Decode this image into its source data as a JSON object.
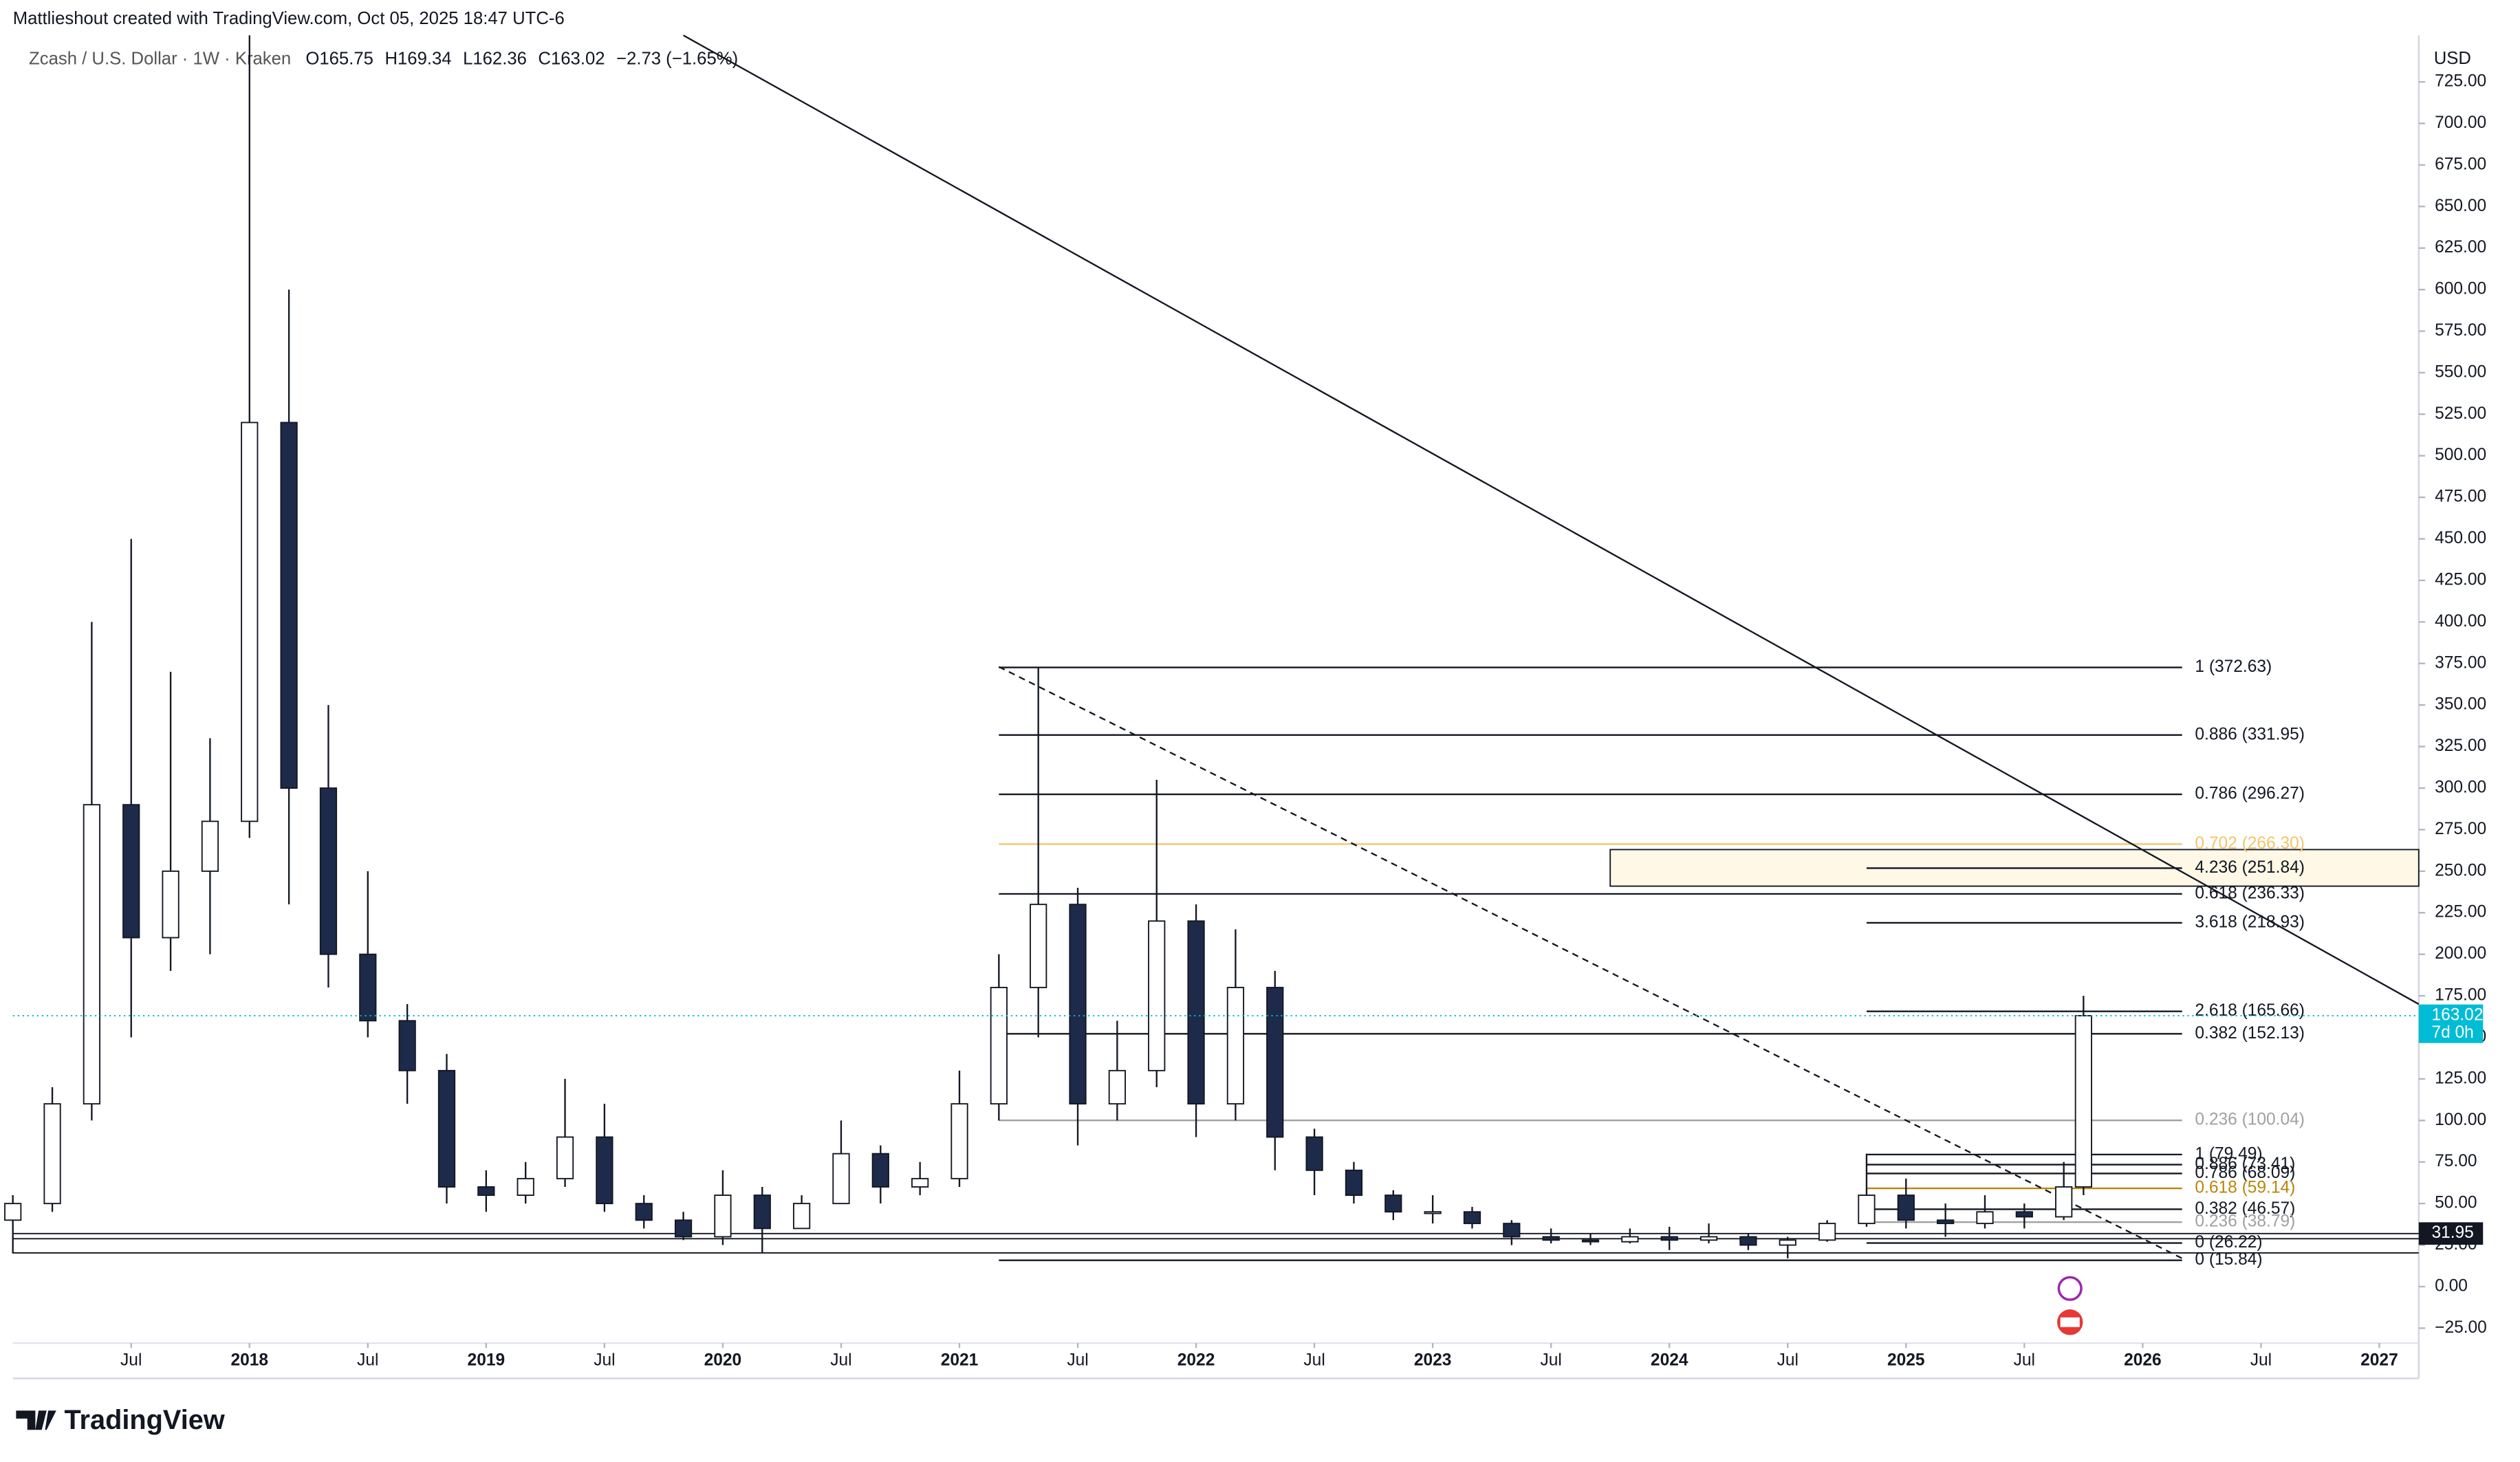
{
  "header": {
    "credit": "Mattlieshout created with TradingView.com, Oct 05, 2025 18:47 UTC-6",
    "symbol": "Zcash / U.S. Dollar · 1W · Kraken",
    "open": "O165.75",
    "high": "H169.34",
    "low": "L162.36",
    "close": "C163.02",
    "change": "−2.73 (−1.65%)",
    "currency": "USD",
    "brand": "TradingView"
  },
  "chart_data": {
    "type": "candlestick",
    "x": [
      "2017-01",
      "2017-03",
      "2017-05",
      "2017-07",
      "2017-09",
      "2017-11",
      "2018-01",
      "2018-03",
      "2018-05",
      "2018-07",
      "2018-09",
      "2018-11",
      "2019-01",
      "2019-03",
      "2019-05",
      "2019-07",
      "2019-09",
      "2019-11",
      "2020-01",
      "2020-03",
      "2020-05",
      "2020-07",
      "2020-09",
      "2020-11",
      "2021-01",
      "2021-03",
      "2021-05",
      "2021-07",
      "2021-09",
      "2021-11",
      "2022-01",
      "2022-03",
      "2022-05",
      "2022-07",
      "2022-09",
      "2022-11",
      "2023-01",
      "2023-03",
      "2023-05",
      "2023-07",
      "2023-09",
      "2023-11",
      "2024-01",
      "2024-03",
      "2024-05",
      "2024-07",
      "2024-09",
      "2024-11",
      "2025-01",
      "2025-03",
      "2025-05",
      "2025-07",
      "2025-09",
      "2025-10"
    ],
    "open": [
      40,
      50,
      110,
      290,
      210,
      250,
      280,
      520,
      300,
      200,
      160,
      130,
      60,
      55,
      65,
      90,
      50,
      40,
      30,
      55,
      35,
      50,
      80,
      60,
      65,
      110,
      180,
      230,
      110,
      130,
      220,
      110,
      180,
      90,
      70,
      55,
      45,
      45,
      38,
      30,
      28,
      27,
      30,
      28,
      30,
      25,
      28,
      38,
      55,
      40,
      38,
      45,
      42,
      60
    ],
    "high": [
      55,
      120,
      400,
      450,
      370,
      330,
      760,
      600,
      350,
      250,
      170,
      140,
      70,
      75,
      125,
      110,
      55,
      45,
      70,
      60,
      55,
      100,
      85,
      75,
      130,
      200,
      373,
      240,
      160,
      305,
      230,
      215,
      190,
      95,
      75,
      58,
      55,
      48,
      40,
      35,
      32,
      35,
      36,
      38,
      32,
      30,
      40,
      80,
      65,
      50,
      55,
      50,
      75,
      175
    ],
    "low": [
      20,
      45,
      100,
      150,
      190,
      200,
      270,
      230,
      180,
      150,
      110,
      50,
      45,
      50,
      60,
      45,
      35,
      28,
      25,
      20,
      35,
      50,
      50,
      55,
      60,
      100,
      150,
      85,
      100,
      120,
      90,
      100,
      70,
      55,
      50,
      40,
      38,
      35,
      25,
      26,
      25,
      26,
      22,
      26,
      22,
      17,
      27,
      36,
      35,
      30,
      35,
      35,
      40,
      55
    ],
    "close": [
      50,
      110,
      290,
      210,
      250,
      280,
      520,
      300,
      200,
      160,
      130,
      60,
      55,
      65,
      90,
      50,
      40,
      30,
      55,
      35,
      50,
      80,
      60,
      65,
      110,
      180,
      230,
      110,
      130,
      220,
      110,
      180,
      90,
      70,
      55,
      45,
      45,
      38,
      30,
      28,
      27,
      30,
      28,
      30,
      25,
      28,
      38,
      55,
      40,
      38,
      45,
      42,
      60,
      163.02
    ],
    "up_color": "#ffffff",
    "down_color": "#1e2a4a",
    "wick_color": "#131722",
    "xlim": [
      "2017-01",
      "2027-03"
    ],
    "xticks": [
      {
        "value": "2017-07",
        "label": "Jul"
      },
      {
        "value": "2018-01",
        "label": "2018"
      },
      {
        "value": "2018-07",
        "label": "Jul"
      },
      {
        "value": "2019-01",
        "label": "2019"
      },
      {
        "value": "2019-07",
        "label": "Jul"
      },
      {
        "value": "2020-01",
        "label": "2020"
      },
      {
        "value": "2020-07",
        "label": "Jul"
      },
      {
        "value": "2021-01",
        "label": "2021"
      },
      {
        "value": "2021-07",
        "label": "Jul"
      },
      {
        "value": "2022-01",
        "label": "2022"
      },
      {
        "value": "2022-07",
        "label": "Jul"
      },
      {
        "value": "2023-01",
        "label": "2023"
      },
      {
        "value": "2023-07",
        "label": "Jul"
      },
      {
        "value": "2024-01",
        "label": "2024"
      },
      {
        "value": "2024-07",
        "label": "Jul"
      },
      {
        "value": "2025-01",
        "label": "2025"
      },
      {
        "value": "2025-07",
        "label": "Jul"
      },
      {
        "value": "2026-01",
        "label": "2026"
      },
      {
        "value": "2026-07",
        "label": "Jul"
      },
      {
        "value": "2027-01",
        "label": "2027"
      }
    ],
    "ylim": [
      -34,
      753
    ],
    "yticks": [
      {
        "value": -25,
        "label": "−25.00"
      },
      {
        "value": 0,
        "label": "0.00"
      },
      {
        "value": 25,
        "label": "25.00"
      },
      {
        "value": 50,
        "label": "50.00"
      },
      {
        "value": 75,
        "label": "75.00"
      },
      {
        "value": 100,
        "label": "100.00"
      },
      {
        "value": 125,
        "label": "125.00"
      },
      {
        "value": 150,
        "label": "150.00"
      },
      {
        "value": 175,
        "label": "175.00"
      },
      {
        "value": 200,
        "label": "200.00"
      },
      {
        "value": 225,
        "label": "225.00"
      },
      {
        "value": 250,
        "label": "250.00"
      },
      {
        "value": 275,
        "label": "275.00"
      },
      {
        "value": 300,
        "label": "300.00"
      },
      {
        "value": 325,
        "label": "325.00"
      },
      {
        "value": 350,
        "label": "350.00"
      },
      {
        "value": 375,
        "label": "375.00"
      },
      {
        "value": 400,
        "label": "400.00"
      },
      {
        "value": 425,
        "label": "425.00"
      },
      {
        "value": 450,
        "label": "450.00"
      },
      {
        "value": 475,
        "label": "475.00"
      },
      {
        "value": 500,
        "label": "500.00"
      },
      {
        "value": 525,
        "label": "525.00"
      },
      {
        "value": 550,
        "label": "550.00"
      },
      {
        "value": 575,
        "label": "575.00"
      },
      {
        "value": 600,
        "label": "600.00"
      },
      {
        "value": 625,
        "label": "625.00"
      },
      {
        "value": 650,
        "label": "650.00"
      },
      {
        "value": 675,
        "label": "675.00"
      },
      {
        "value": 700,
        "label": "700.00"
      },
      {
        "value": 725,
        "label": "725.00"
      }
    ],
    "grid": false,
    "fib_levels": [
      {
        "label": "1 (372.63)",
        "value": 372.63,
        "x0": "2021-03",
        "x1": "2026-03",
        "color": "#131722"
      },
      {
        "label": "0.886 (331.95)",
        "value": 331.95,
        "x0": "2021-03",
        "x1": "2026-03",
        "color": "#131722"
      },
      {
        "label": "0.786 (296.27)",
        "value": 296.27,
        "x0": "2021-03",
        "x1": "2026-03",
        "color": "#131722"
      },
      {
        "label": "0.702 (266.30)",
        "value": 266.3,
        "x0": "2021-03",
        "x1": "2026-03",
        "color": "#f5c46b"
      },
      {
        "label": "0.618 (236.33)",
        "value": 236.33,
        "x0": "2021-03",
        "x1": "2026-03",
        "color": "#131722"
      },
      {
        "label": "0.382 (152.13)",
        "value": 152.13,
        "x0": "2021-03",
        "x1": "2026-03",
        "color": "#131722"
      },
      {
        "label": "0.236 (100.04)",
        "value": 100.04,
        "x0": "2021-03",
        "x1": "2026-03",
        "color": "#a0a0a0"
      },
      {
        "label": "0 (15.84)",
        "value": 15.84,
        "x0": "2021-03",
        "x1": "2026-03",
        "color": "#131722"
      },
      {
        "label": "4.236 (251.84)",
        "value": 251.84,
        "x0": "2024-11",
        "x1": "2026-03",
        "color": "#131722"
      },
      {
        "label": "3.618 (218.93)",
        "value": 218.93,
        "x0": "2024-11",
        "x1": "2026-03",
        "color": "#131722"
      },
      {
        "label": "2.618 (165.66)",
        "value": 165.66,
        "x0": "2024-11",
        "x1": "2026-03",
        "color": "#131722"
      },
      {
        "label": "1 (79.49)",
        "value": 79.49,
        "x0": "2024-11",
        "x1": "2026-03",
        "color": "#131722"
      },
      {
        "label": "0.886 (73.41)",
        "value": 73.41,
        "x0": "2024-11",
        "x1": "2026-03",
        "color": "#131722"
      },
      {
        "label": "0.786 (68.09)",
        "value": 68.09,
        "x0": "2024-11",
        "x1": "2026-03",
        "color": "#131722"
      },
      {
        "label": "0.618 (59.14)",
        "value": 59.14,
        "x0": "2024-11",
        "x1": "2026-03",
        "color": "#b8860b"
      },
      {
        "label": "0.382 (46.57)",
        "value": 46.57,
        "x0": "2024-11",
        "x1": "2026-03",
        "color": "#131722"
      },
      {
        "label": "0.236 (38.79)",
        "value": 38.79,
        "x0": "2024-11",
        "x1": "2026-03",
        "color": "#a0a0a0"
      },
      {
        "label": "0 (26.22)",
        "value": 26.22,
        "x0": "2024-11",
        "x1": "2026-03",
        "color": "#131722"
      }
    ],
    "zone": {
      "x0": "2023-10",
      "x1": "2027-03",
      "y0": 241,
      "y1": 263,
      "color": "#fff8e6"
    },
    "trendlines": [
      {
        "x": [
          "2019-11",
          "2027-03"
        ],
        "y": [
          753,
          170
        ],
        "style": "solid"
      },
      {
        "x": [
          "2021-03",
          "2026-03"
        ],
        "y": [
          373,
          17
        ],
        "style": "dashed"
      }
    ],
    "support_lines": [
      31.95,
      28.8,
      20.3
    ],
    "price": {
      "value": 163.02,
      "countdown": "7d 0h",
      "color": "#00bcd4"
    },
    "level_label": {
      "value": 31.95
    }
  }
}
